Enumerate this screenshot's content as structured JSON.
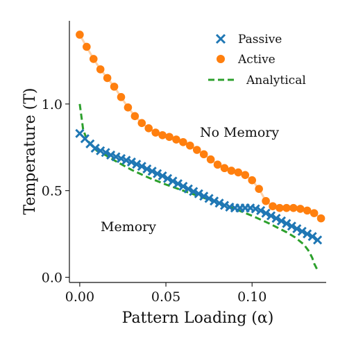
{
  "chart_data": {
    "type": "scatter",
    "title": "",
    "xlabel": "Pattern Loading (α)",
    "ylabel": "Temperature (T)",
    "xlim": [
      -0.006,
      0.143
    ],
    "ylim": [
      -0.03,
      1.48
    ],
    "xticks": [
      0.0,
      0.05,
      0.1
    ],
    "xtick_labels": [
      "0.00",
      "0.05",
      "0.10"
    ],
    "yticks": [
      0.0,
      0.5,
      1.0
    ],
    "ytick_labels": [
      "0.0",
      "0.5",
      "1.0"
    ],
    "grid": false,
    "legend_position": "top-right",
    "annotations": [
      {
        "text": "No Memory",
        "x": 0.088,
        "y": 0.83
      },
      {
        "text": "Memory",
        "x": 0.027,
        "y": 0.28
      }
    ],
    "series": [
      {
        "name": "Passive",
        "marker": "x",
        "color": "#1f77b4",
        "x": [
          0.0,
          0.003,
          0.006,
          0.009,
          0.012,
          0.015,
          0.018,
          0.021,
          0.024,
          0.027,
          0.03,
          0.033,
          0.036,
          0.039,
          0.042,
          0.045,
          0.048,
          0.051,
          0.054,
          0.057,
          0.06,
          0.063,
          0.066,
          0.069,
          0.072,
          0.075,
          0.078,
          0.081,
          0.084,
          0.087,
          0.09,
          0.093,
          0.096,
          0.099,
          0.102,
          0.105,
          0.108,
          0.111,
          0.114,
          0.117,
          0.12,
          0.123,
          0.126,
          0.129,
          0.132,
          0.135,
          0.138
        ],
        "y": [
          0.83,
          0.8,
          0.77,
          0.745,
          0.73,
          0.72,
          0.705,
          0.695,
          0.685,
          0.675,
          0.665,
          0.652,
          0.64,
          0.625,
          0.612,
          0.598,
          0.585,
          0.57,
          0.555,
          0.54,
          0.525,
          0.51,
          0.495,
          0.482,
          0.468,
          0.455,
          0.44,
          0.428,
          0.415,
          0.405,
          0.4,
          0.4,
          0.4,
          0.4,
          0.395,
          0.385,
          0.37,
          0.355,
          0.34,
          0.325,
          0.31,
          0.295,
          0.28,
          0.265,
          0.25,
          0.235,
          0.215
        ]
      },
      {
        "name": "Active",
        "marker": "o",
        "color": "#ff7f0e",
        "x": [
          0.0,
          0.004,
          0.008,
          0.012,
          0.016,
          0.02,
          0.024,
          0.028,
          0.032,
          0.036,
          0.04,
          0.044,
          0.048,
          0.052,
          0.056,
          0.06,
          0.064,
          0.068,
          0.072,
          0.076,
          0.08,
          0.084,
          0.088,
          0.092,
          0.096,
          0.1,
          0.104,
          0.108,
          0.112,
          0.116,
          0.12,
          0.124,
          0.128,
          0.132,
          0.136,
          0.14
        ],
        "y": [
          1.4,
          1.33,
          1.26,
          1.2,
          1.15,
          1.1,
          1.04,
          0.98,
          0.93,
          0.89,
          0.86,
          0.835,
          0.82,
          0.81,
          0.795,
          0.78,
          0.76,
          0.735,
          0.71,
          0.68,
          0.65,
          0.63,
          0.615,
          0.605,
          0.59,
          0.56,
          0.51,
          0.44,
          0.41,
          0.4,
          0.4,
          0.4,
          0.395,
          0.385,
          0.37,
          0.34
        ]
      },
      {
        "name": "Analytical",
        "line_style": "dashed",
        "color": "#2ca02c",
        "x": [
          0.0,
          0.001,
          0.002,
          0.004,
          0.006,
          0.008,
          0.01,
          0.015,
          0.02,
          0.03,
          0.04,
          0.05,
          0.06,
          0.07,
          0.08,
          0.09,
          0.1,
          0.11,
          0.12,
          0.125,
          0.13,
          0.133,
          0.135,
          0.136,
          0.137,
          0.138
        ],
        "y": [
          1.0,
          0.925,
          0.85,
          0.8,
          0.77,
          0.75,
          0.73,
          0.705,
          0.675,
          0.62,
          0.575,
          0.535,
          0.5,
          0.465,
          0.43,
          0.395,
          0.355,
          0.31,
          0.26,
          0.23,
          0.19,
          0.15,
          0.11,
          0.08,
          0.06,
          0.04
        ]
      }
    ]
  }
}
